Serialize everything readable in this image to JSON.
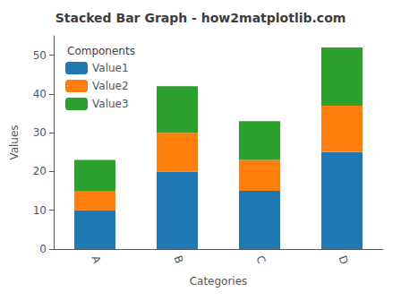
{
  "chart_data": {
    "type": "bar",
    "title": "Stacked Bar Graph - how2matplotlib.com",
    "xlabel": "Categories",
    "ylabel": "Values",
    "categories": [
      "A",
      "B",
      "C",
      "D"
    ],
    "series": [
      {
        "name": "Value1",
        "color": "#1f77b4",
        "values": [
          10,
          20,
          15,
          25
        ]
      },
      {
        "name": "Value2",
        "color": "#ff7f0e",
        "values": [
          5,
          10,
          8,
          12
        ]
      },
      {
        "name": "Value3",
        "color": "#2ca02c",
        "values": [
          8,
          12,
          10,
          15
        ]
      }
    ],
    "stacked": true,
    "legend": "upper left",
    "legend_title": "Components",
    "ylim": [
      0,
      55
    ],
    "yticks": [
      0,
      10,
      20,
      30,
      40,
      50
    ],
    "grid": false
  }
}
